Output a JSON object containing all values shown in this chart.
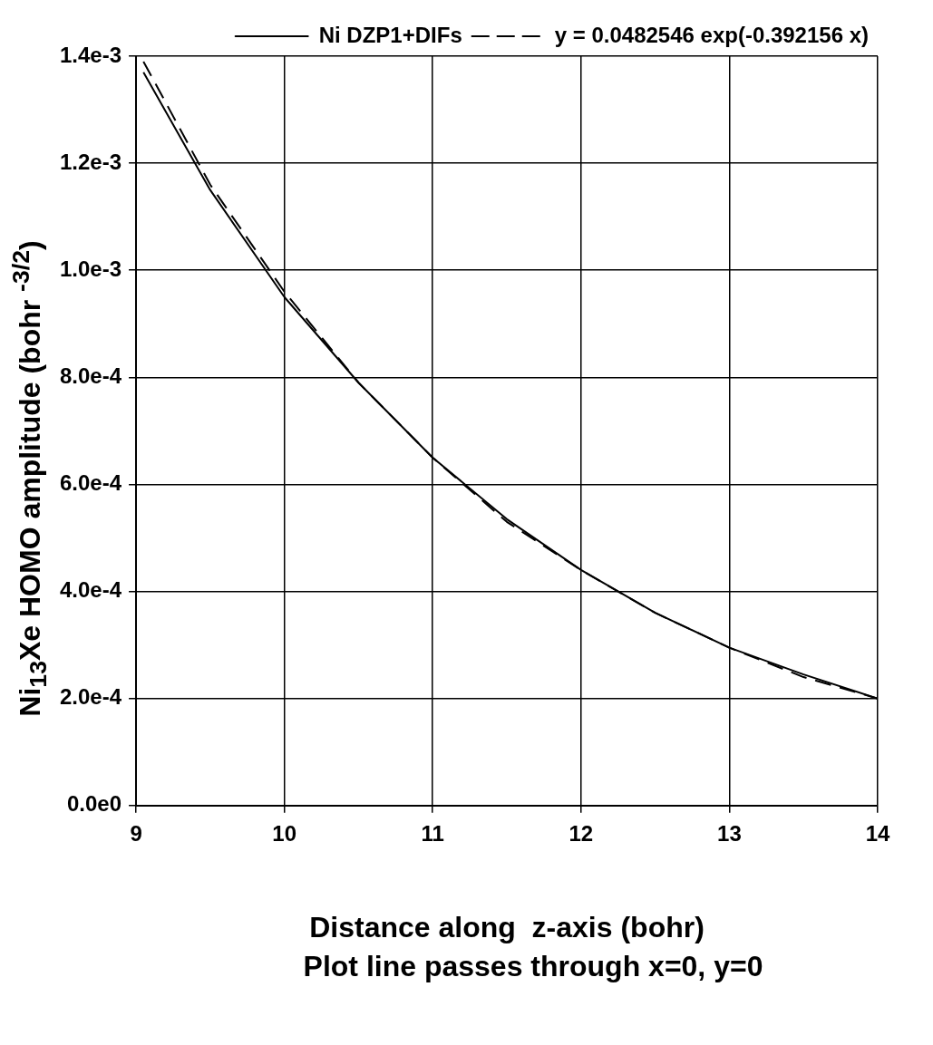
{
  "chart_data": {
    "type": "line",
    "xlabel": "Distance along  z-axis (bohr)",
    "ylabel": "Ni$_{13}$Xe HOMO amplitude (bohr $^{-3/2}$)",
    "annotations": [
      "Plot line passes through  x=0, y=0"
    ],
    "xlim": [
      9,
      14
    ],
    "xticks": [
      9,
      10,
      11,
      12,
      13,
      14
    ],
    "ylim": [
      0,
      0.0014
    ],
    "yticks": [
      {
        "value": 0,
        "label": "0.0e0"
      },
      {
        "value": 0.0002,
        "label": "2.0e-4"
      },
      {
        "value": 0.0004,
        "label": "4.0e-4"
      },
      {
        "value": 0.0006,
        "label": "6.0e-4"
      },
      {
        "value": 0.0008,
        "label": "8.0e-4"
      },
      {
        "value": 0.001,
        "label": "1.0e-3"
      },
      {
        "value": 0.0012,
        "label": "1.2e-3"
      },
      {
        "value": 0.0014,
        "label": "1.4e-3"
      }
    ],
    "grid": true,
    "legend": "top",
    "marker": "none",
    "x": [
      9.05,
      9.5,
      10,
      10.5,
      11,
      11.5,
      12,
      12.5,
      13,
      13.5,
      14
    ],
    "series": [
      {
        "name": "Ni DZP1+DIFs",
        "color": "#000000",
        "line_style": "solid",
        "values": [
          0.00137,
          0.00115,
          0.00095,
          0.00079,
          0.00065,
          0.000535,
          0.00044,
          0.00036,
          0.000295,
          0.000245,
          0.0002
        ]
      },
      {
        "name": "y = 0.0482546 exp(-0.392156 x)",
        "color": "#000000",
        "line_style": "dashed",
        "values": [
          0.00139,
          0.00116,
          0.00096,
          0.00079,
          0.00065,
          0.00053,
          0.00044,
          0.00036,
          0.000295,
          0.00024,
          0.0002
        ]
      }
    ]
  }
}
